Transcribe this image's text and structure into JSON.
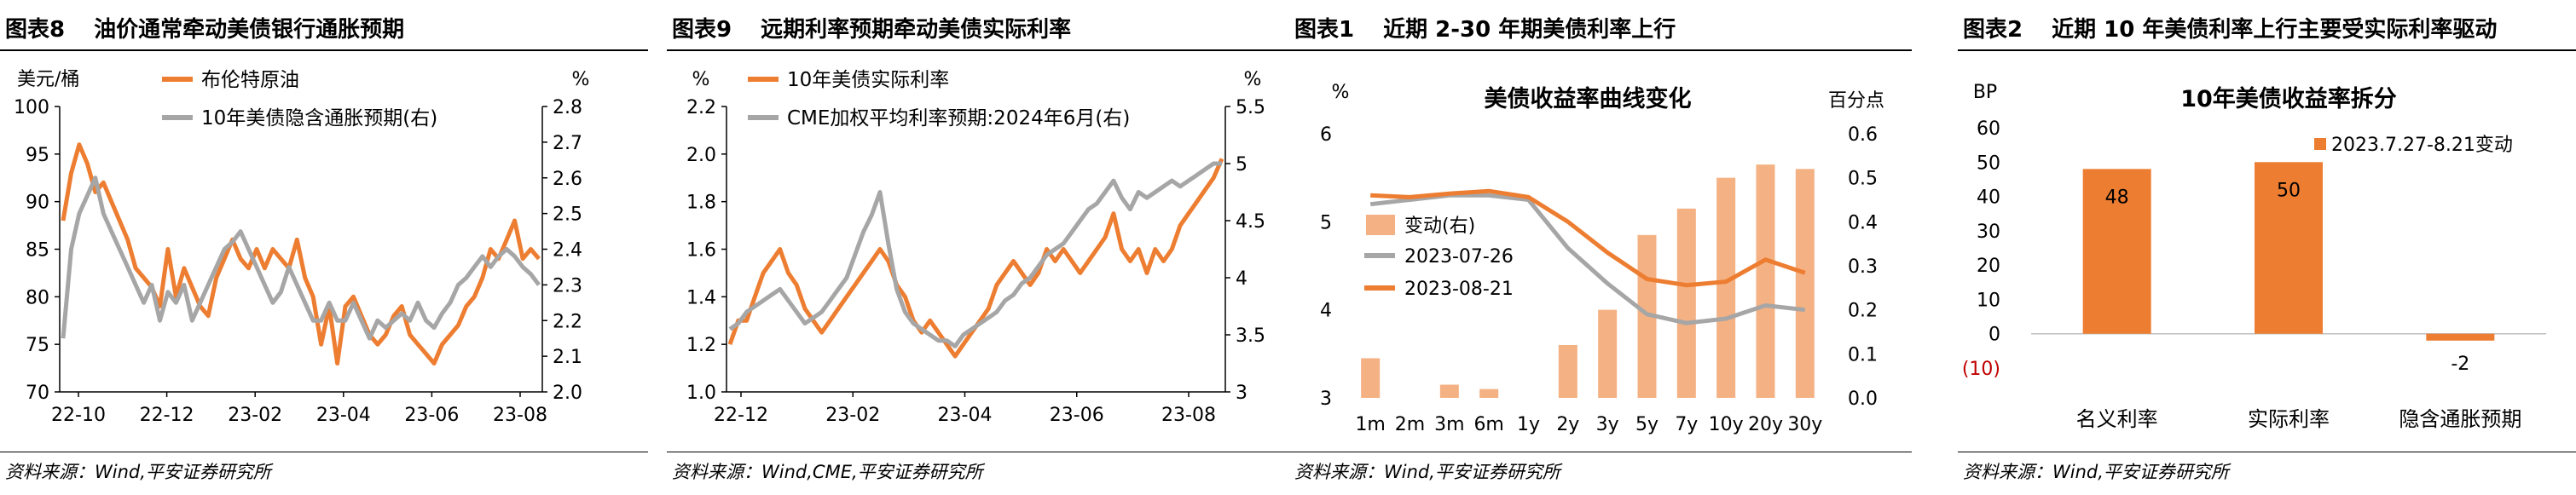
{
  "colors": {
    "orange": "#ED7D31",
    "gray": "#A6A6A6",
    "bar_light": "#F4B183",
    "red": "#C00000"
  },
  "panels": [
    {
      "fig": "图表8",
      "title": "油价通常牵动美债银行通胀预期",
      "source": "资料来源：Wind,平安证券研究所"
    },
    {
      "fig": "图表9",
      "title": "远期利率预期牵动美债实际利率",
      "source": "资料来源：Wind,CME,平安证券研究所"
    },
    {
      "fig": "图表1",
      "title": "近期 2-30 年期美债利率上行",
      "source": "资料来源：Wind,平安证券研究所"
    },
    {
      "fig": "图表2",
      "title": "近期 10 年美债利率上行主要受实际利率驱动",
      "source": "资料来源：Wind,平安证券研究所"
    }
  ],
  "chart_data": [
    {
      "type": "line",
      "left_unit": "美元/桶",
      "right_unit": "%",
      "ylim": [
        70,
        100
      ],
      "yticks": [
        70,
        75,
        80,
        85,
        90,
        95,
        100
      ],
      "y2lim": [
        2.0,
        2.8
      ],
      "y2ticks": [
        "2.0",
        "2.1",
        "2.2",
        "2.3",
        "2.4",
        "2.5",
        "2.6",
        "2.7",
        "2.8"
      ],
      "xticks": [
        "22-10",
        "22-12",
        "23-02",
        "23-04",
        "23-06",
        "23-08"
      ],
      "series": [
        {
          "name": "布伦特原油",
          "axis": "left",
          "color": "orange",
          "values": [
            88,
            93,
            96,
            94,
            91,
            92,
            90,
            88,
            86,
            83,
            82,
            81,
            79,
            85,
            80,
            83,
            81,
            79,
            78,
            82,
            84,
            86,
            84,
            83,
            85,
            83,
            85,
            84,
            83,
            86,
            82,
            80,
            75,
            79,
            73,
            79,
            80,
            78,
            76,
            75,
            76,
            78,
            79,
            76,
            75,
            74,
            73,
            75,
            76,
            77,
            79,
            80,
            82,
            85,
            84,
            86,
            88,
            84,
            85,
            84
          ]
        },
        {
          "name": "10年美债隐含通胀预期(右)",
          "axis": "right",
          "color": "gray",
          "values": [
            2.15,
            2.4,
            2.5,
            2.55,
            2.6,
            2.5,
            2.45,
            2.4,
            2.35,
            2.3,
            2.25,
            2.3,
            2.2,
            2.28,
            2.25,
            2.3,
            2.2,
            2.25,
            2.3,
            2.35,
            2.4,
            2.42,
            2.45,
            2.4,
            2.35,
            2.3,
            2.25,
            2.28,
            2.35,
            2.3,
            2.25,
            2.2,
            2.2,
            2.25,
            2.2,
            2.2,
            2.25,
            2.2,
            2.15,
            2.2,
            2.18,
            2.2,
            2.22,
            2.2,
            2.25,
            2.2,
            2.18,
            2.22,
            2.25,
            2.3,
            2.32,
            2.35,
            2.38,
            2.35,
            2.38,
            2.4,
            2.38,
            2.35,
            2.33,
            2.3
          ]
        }
      ]
    },
    {
      "type": "line",
      "left_unit": "%",
      "right_unit": "%",
      "ylim": [
        1.0,
        2.2
      ],
      "yticks": [
        "1.0",
        "1.2",
        "1.4",
        "1.6",
        "1.8",
        "2.0",
        "2.2"
      ],
      "y2lim": [
        3,
        5.5
      ],
      "y2ticks": [
        "3",
        "3.5",
        "4",
        "4.5",
        "5",
        "5.5"
      ],
      "xticks": [
        "22-12",
        "23-02",
        "23-04",
        "23-06",
        "23-08"
      ],
      "series": [
        {
          "name": "10年美债实际利率",
          "axis": "left",
          "color": "orange",
          "values": [
            1.2,
            1.3,
            1.3,
            1.4,
            1.5,
            1.55,
            1.6,
            1.5,
            1.45,
            1.35,
            1.3,
            1.25,
            1.3,
            1.35,
            1.4,
            1.45,
            1.5,
            1.55,
            1.6,
            1.55,
            1.45,
            1.4,
            1.3,
            1.25,
            1.3,
            1.25,
            1.2,
            1.15,
            1.2,
            1.25,
            1.3,
            1.35,
            1.45,
            1.5,
            1.55,
            1.5,
            1.45,
            1.5,
            1.6,
            1.55,
            1.6,
            1.55,
            1.5,
            1.55,
            1.6,
            1.65,
            1.75,
            1.6,
            1.55,
            1.6,
            1.5,
            1.6,
            1.55,
            1.6,
            1.7,
            1.75,
            1.8,
            1.85,
            1.9,
            1.98
          ]
        },
        {
          "name": "CME加权平均利率预期:2024年6月(右)",
          "axis": "right",
          "color": "gray",
          "values": [
            3.55,
            3.6,
            3.7,
            3.75,
            3.8,
            3.85,
            3.9,
            3.8,
            3.7,
            3.6,
            3.65,
            3.7,
            3.8,
            3.9,
            4.0,
            4.2,
            4.4,
            4.55,
            4.75,
            4.3,
            3.9,
            3.7,
            3.6,
            3.55,
            3.5,
            3.45,
            3.45,
            3.4,
            3.5,
            3.55,
            3.6,
            3.65,
            3.7,
            3.8,
            3.85,
            3.95,
            4.0,
            4.1,
            4.2,
            4.25,
            4.3,
            4.4,
            4.5,
            4.6,
            4.65,
            4.75,
            4.85,
            4.7,
            4.6,
            4.75,
            4.7,
            4.75,
            4.8,
            4.85,
            4.8,
            4.85,
            4.9,
            4.95,
            5.0,
            5.0
          ]
        }
      ]
    },
    {
      "type": "bar",
      "title": "美债收益率曲线变化",
      "left_unit": "%",
      "right_unit": "百分点",
      "categories": [
        "1m",
        "2m",
        "3m",
        "6m",
        "1y",
        "2y",
        "3y",
        "5y",
        "7y",
        "10y",
        "20y",
        "30y"
      ],
      "ylim": [
        3,
        6
      ],
      "yticks": [
        3,
        4,
        5,
        6
      ],
      "y2lim": [
        0.0,
        0.6
      ],
      "y2ticks": [
        "0.0",
        "0.1",
        "0.2",
        "0.3",
        "0.4",
        "0.5",
        "0.6"
      ],
      "series": [
        {
          "name": "变动(右)",
          "axis": "right",
          "color": "bar_light",
          "values": [
            0.09,
            null,
            0.03,
            0.02,
            null,
            0.12,
            0.2,
            0.37,
            0.43,
            0.5,
            0.53,
            0.52
          ]
        },
        {
          "name": "2023-07-26",
          "axis": "left",
          "color": "gray",
          "values": [
            5.2,
            5.25,
            5.3,
            5.3,
            5.25,
            4.7,
            4.3,
            3.95,
            3.85,
            3.9,
            4.05,
            4.0
          ]
        },
        {
          "name": "2023-08-21",
          "axis": "left",
          "color": "orange",
          "values": [
            5.3,
            5.28,
            5.32,
            5.35,
            5.28,
            5.0,
            4.65,
            4.35,
            4.28,
            4.32,
            4.57,
            4.42
          ]
        }
      ]
    },
    {
      "type": "bar",
      "title": "10年美债收益率拆分",
      "left_unit": "BP",
      "ylim": [
        -10,
        60
      ],
      "yticks": [
        "60",
        "50",
        "40",
        "30",
        "20",
        "10",
        "0",
        "(10)"
      ],
      "categories": [
        "名义利率",
        "实际利率",
        "隐含通胀预期"
      ],
      "series": [
        {
          "name": "2023.7.27-8.21变动",
          "color": "orange",
          "values": [
            48,
            50,
            -2
          ]
        }
      ],
      "data_labels": [
        "48",
        "50",
        "-2"
      ]
    }
  ]
}
